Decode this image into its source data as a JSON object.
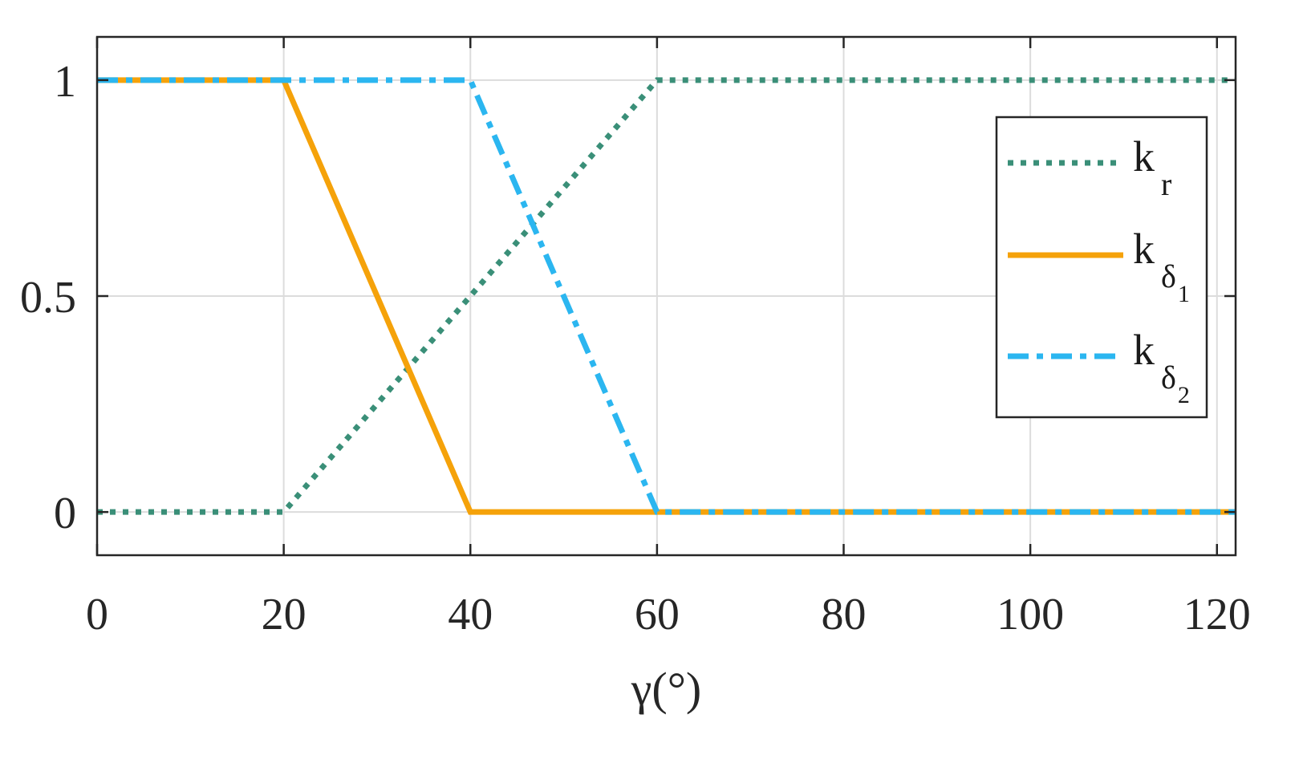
{
  "chart_data": {
    "type": "line",
    "title": "",
    "xlabel": "γ(°)",
    "ylabel": "",
    "xlim": [
      0,
      122
    ],
    "ylim": [
      -0.1,
      1.1
    ],
    "xticks": [
      0,
      20,
      40,
      60,
      80,
      100,
      120
    ],
    "xtick_labels": [
      "0",
      "20",
      "40",
      "60",
      "80",
      "100",
      "120"
    ],
    "yticks": [
      0,
      0.5,
      1
    ],
    "ytick_labels": [
      "0",
      "0.5",
      "1"
    ],
    "grid": true,
    "legend_position": "top-right",
    "series": [
      {
        "name": "k_r",
        "legend_base": "k",
        "legend_sub": "r",
        "legend_subsub": "",
        "style": "dotted",
        "color": "#3a8f78",
        "x": [
          0,
          20,
          60,
          122
        ],
        "y": [
          0,
          0,
          1,
          1
        ]
      },
      {
        "name": "k_δ1",
        "legend_base": "k",
        "legend_sub": "δ",
        "legend_subsub": "1",
        "style": "solid",
        "color": "#f5a20a",
        "x": [
          0,
          20,
          40,
          122
        ],
        "y": [
          1,
          1,
          0,
          0
        ]
      },
      {
        "name": "k_δ2",
        "legend_base": "k",
        "legend_sub": "δ",
        "legend_subsub": "2",
        "style": "dashdot",
        "color": "#2bb6f0",
        "x": [
          0,
          40,
          60,
          122
        ],
        "y": [
          1,
          1,
          0,
          0
        ]
      }
    ]
  }
}
